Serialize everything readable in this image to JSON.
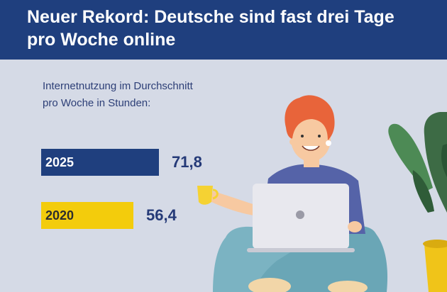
{
  "header": {
    "title_line1": "Neuer Rekord: Deutsche sind fast drei Tage",
    "title_line2": "pro Woche online"
  },
  "chart_data": {
    "type": "bar",
    "title": "Neuer Rekord: Deutsche sind fast drei Tage pro Woche online",
    "subtitle_line1": "Internetnutzung im Durchschnitt",
    "subtitle_line2": "pro Woche in Stunden:",
    "categories": [
      "2025",
      "2020"
    ],
    "values": [
      71.8,
      56.4
    ],
    "value_labels": [
      "71,8",
      "56,4"
    ],
    "bar_colors": [
      "#1f3f7e",
      "#f3cc0c"
    ],
    "label_colors": [
      "#ffffff",
      "#2d2d2d"
    ]
  },
  "illustration": {
    "description_icon": "woman-with-laptop-and-plant-icon"
  }
}
